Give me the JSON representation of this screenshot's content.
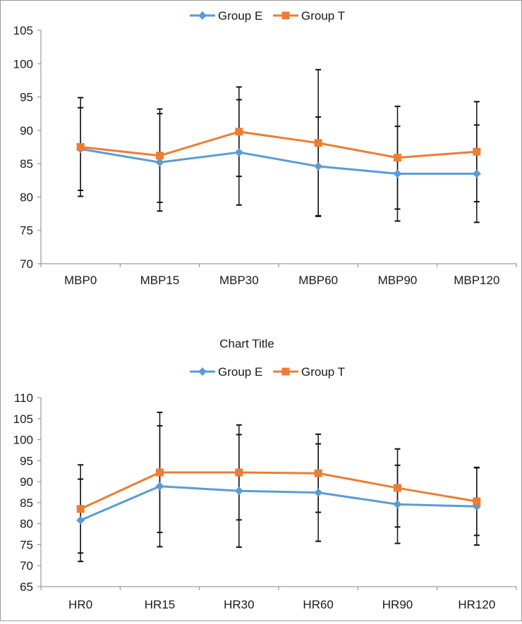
{
  "chart_data": [
    {
      "type": "line",
      "title": "",
      "xlabel": "",
      "ylabel": "",
      "ylim": [
        70,
        105
      ],
      "yticks": [
        70,
        75,
        80,
        85,
        90,
        95,
        100,
        105
      ],
      "categories": [
        "MBP0",
        "MBP15",
        "MBP30",
        "MBP60",
        "MBP90",
        "MBP120"
      ],
      "legend": "top-center",
      "grid": false,
      "series": [
        {
          "name": "Group E",
          "color": "#5b9bd5",
          "marker": "diamond",
          "values": [
            87.2,
            85.2,
            86.7,
            84.6,
            83.5,
            83.5
          ],
          "error": [
            6.2,
            7.3,
            7.9,
            7.4,
            7.1,
            7.3
          ]
        },
        {
          "name": "Group T",
          "color": "#ed7d31",
          "marker": "square",
          "values": [
            87.5,
            86.2,
            89.8,
            88.1,
            85.9,
            86.8
          ],
          "error": [
            7.4,
            7.0,
            6.7,
            11.0,
            7.7,
            7.5
          ]
        }
      ]
    },
    {
      "type": "line",
      "title": "Chart Title",
      "xlabel": "",
      "ylabel": "",
      "ylim": [
        65,
        110
      ],
      "yticks": [
        65,
        70,
        75,
        80,
        85,
        90,
        95,
        100,
        105,
        110
      ],
      "categories": [
        "HR0",
        "HR15",
        "HR30",
        "HR60",
        "HR90",
        "HR120"
      ],
      "legend": "top-center",
      "grid": false,
      "series": [
        {
          "name": "Group E",
          "color": "#5b9bd5",
          "marker": "diamond",
          "values": [
            80.8,
            88.9,
            87.8,
            87.4,
            84.6,
            84.1
          ],
          "error": [
            9.8,
            14.4,
            13.4,
            11.6,
            9.3,
            9.2
          ]
        },
        {
          "name": "Group T",
          "color": "#ed7d31",
          "marker": "square",
          "values": [
            83.5,
            92.2,
            92.2,
            92.0,
            88.5,
            85.3
          ],
          "error": [
            10.5,
            14.3,
            11.3,
            9.3,
            9.3,
            8.1
          ]
        }
      ]
    }
  ]
}
